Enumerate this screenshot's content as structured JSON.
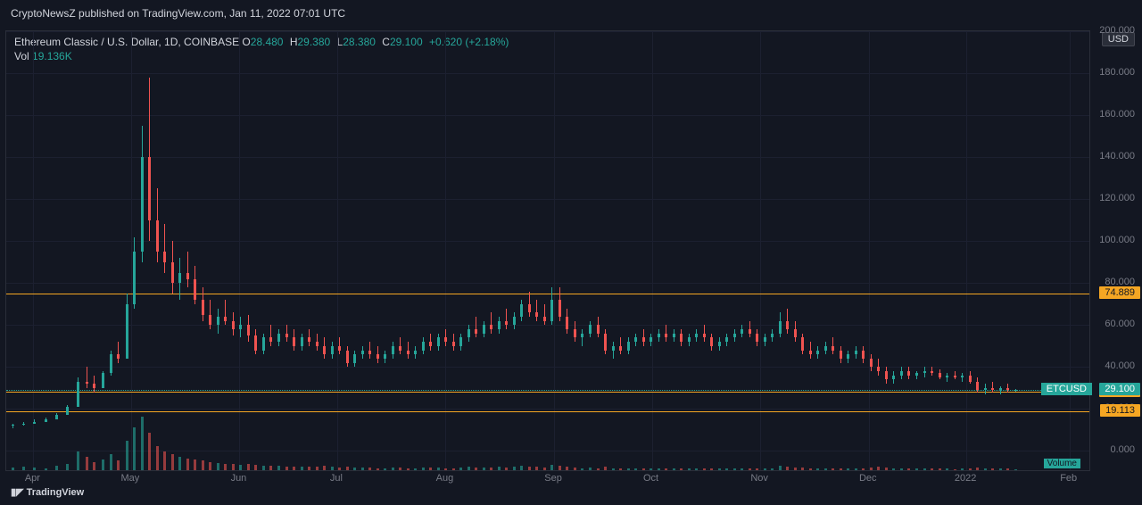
{
  "header": {
    "publisher": "CryptoNewsZ published on TradingView.com, Jan 11, 2022 07:01 UTC"
  },
  "ohlc": {
    "symbol": "Ethereum Classic / U.S. Dollar, 1D, COINBASE",
    "o_label": "O",
    "o": "28.480",
    "h_label": "H",
    "h": "29.380",
    "l_label": "L",
    "l": "28.380",
    "c_label": "C",
    "c": "29.100",
    "chg": "+0.620",
    "chg_pct": "(+2.18%)"
  },
  "volume": {
    "label": "Vol",
    "value": "19.136K"
  },
  "currency_badge": "USD",
  "colors": {
    "bg": "#131722",
    "up": "#26a69a",
    "down": "#ef5350",
    "grid": "#1c2030",
    "hline": "#f5a623",
    "axis_text": "#787b86",
    "text": "#d1d4dc",
    "price_tag_up": "#26a69a",
    "price_tag_line": "#f5a623"
  },
  "chart": {
    "type": "candlestick",
    "ylim": [
      -10,
      200
    ],
    "y_ticks": [
      0,
      20,
      40,
      60,
      80,
      100,
      120,
      140,
      160,
      180,
      200
    ],
    "y_tick_labels": [
      "0.000",
      "20.000",
      "40.000",
      "60.000",
      "80.000",
      "100.000",
      "120.000",
      "140.000",
      "160.000",
      "180.000",
      "200.000"
    ],
    "x_labels": [
      "Apr",
      "May",
      "Jun",
      "Jul",
      "Aug",
      "Sep",
      "Oct",
      "Nov",
      "Dec",
      "2022",
      "Feb"
    ],
    "x_positions_pct": [
      2.5,
      11.5,
      21.5,
      30.5,
      40.5,
      50.5,
      59.5,
      69.5,
      79.5,
      88.5,
      98.0
    ],
    "h_lines": [
      {
        "value": 74.889,
        "label": "74.889",
        "color": "#f5a623"
      },
      {
        "value": 28.436,
        "label": "28.436",
        "color": "#f5a623"
      },
      {
        "value": 19.113,
        "label": "19.113",
        "color": "#f5a623"
      }
    ],
    "current_price": {
      "value": 29.1,
      "label": "29.100",
      "ticker": "ETCUSD",
      "bg": "#26a69a"
    },
    "vol_baseline": 0.02,
    "candles": [
      {
        "x": 0.5,
        "o": 12,
        "h": 13,
        "l": 11,
        "c": 12.5,
        "v": 0.05
      },
      {
        "x": 1.5,
        "o": 12.5,
        "h": 14,
        "l": 12,
        "c": 13,
        "v": 0.06
      },
      {
        "x": 2.5,
        "o": 13,
        "h": 15,
        "l": 13,
        "c": 14,
        "v": 0.05
      },
      {
        "x": 3.5,
        "o": 14,
        "h": 16,
        "l": 14,
        "c": 15,
        "v": 0.04
      },
      {
        "x": 4.5,
        "o": 15,
        "h": 18,
        "l": 15,
        "c": 17,
        "v": 0.08
      },
      {
        "x": 5.5,
        "o": 17,
        "h": 22,
        "l": 17,
        "c": 21,
        "v": 0.12
      },
      {
        "x": 6.5,
        "o": 21,
        "h": 35,
        "l": 21,
        "c": 33,
        "v": 0.35
      },
      {
        "x": 7.3,
        "o": 33,
        "h": 40,
        "l": 30,
        "c": 32,
        "v": 0.25
      },
      {
        "x": 8.0,
        "o": 32,
        "h": 36,
        "l": 28,
        "c": 30,
        "v": 0.15
      },
      {
        "x": 8.8,
        "o": 30,
        "h": 38,
        "l": 30,
        "c": 37,
        "v": 0.2
      },
      {
        "x": 9.5,
        "o": 37,
        "h": 48,
        "l": 36,
        "c": 46,
        "v": 0.3
      },
      {
        "x": 10.2,
        "o": 46,
        "h": 52,
        "l": 42,
        "c": 44,
        "v": 0.18
      },
      {
        "x": 11,
        "o": 44,
        "h": 75,
        "l": 44,
        "c": 70,
        "v": 0.55
      },
      {
        "x": 11.7,
        "o": 70,
        "h": 102,
        "l": 68,
        "c": 95,
        "v": 0.8
      },
      {
        "x": 12.4,
        "o": 95,
        "h": 155,
        "l": 90,
        "c": 140,
        "v": 1.0
      },
      {
        "x": 13.1,
        "o": 140,
        "h": 178,
        "l": 100,
        "c": 110,
        "v": 0.7
      },
      {
        "x": 13.8,
        "o": 110,
        "h": 125,
        "l": 90,
        "c": 95,
        "v": 0.45
      },
      {
        "x": 14.5,
        "o": 95,
        "h": 108,
        "l": 85,
        "c": 90,
        "v": 0.35
      },
      {
        "x": 15.2,
        "o": 90,
        "h": 100,
        "l": 75,
        "c": 80,
        "v": 0.3
      },
      {
        "x": 15.9,
        "o": 80,
        "h": 92,
        "l": 72,
        "c": 85,
        "v": 0.25
      },
      {
        "x": 16.6,
        "o": 85,
        "h": 95,
        "l": 78,
        "c": 82,
        "v": 0.22
      },
      {
        "x": 17.3,
        "o": 82,
        "h": 88,
        "l": 70,
        "c": 72,
        "v": 0.2
      },
      {
        "x": 18.0,
        "o": 72,
        "h": 78,
        "l": 62,
        "c": 65,
        "v": 0.18
      },
      {
        "x": 18.7,
        "o": 65,
        "h": 72,
        "l": 58,
        "c": 60,
        "v": 0.15
      },
      {
        "x": 19.4,
        "o": 60,
        "h": 68,
        "l": 56,
        "c": 64,
        "v": 0.14
      },
      {
        "x": 20.1,
        "o": 64,
        "h": 72,
        "l": 60,
        "c": 62,
        "v": 0.12
      },
      {
        "x": 20.8,
        "o": 62,
        "h": 66,
        "l": 55,
        "c": 58,
        "v": 0.11
      },
      {
        "x": 21.5,
        "o": 58,
        "h": 64,
        "l": 54,
        "c": 60,
        "v": 0.1
      },
      {
        "x": 22.2,
        "o": 60,
        "h": 65,
        "l": 52,
        "c": 55,
        "v": 0.12
      },
      {
        "x": 22.9,
        "o": 55,
        "h": 58,
        "l": 46,
        "c": 48,
        "v": 0.1
      },
      {
        "x": 23.6,
        "o": 48,
        "h": 56,
        "l": 46,
        "c": 54,
        "v": 0.09
      },
      {
        "x": 24.3,
        "o": 54,
        "h": 60,
        "l": 50,
        "c": 52,
        "v": 0.08
      },
      {
        "x": 25.0,
        "o": 52,
        "h": 58,
        "l": 50,
        "c": 56,
        "v": 0.08
      },
      {
        "x": 25.7,
        "o": 56,
        "h": 60,
        "l": 52,
        "c": 54,
        "v": 0.07
      },
      {
        "x": 26.4,
        "o": 54,
        "h": 58,
        "l": 48,
        "c": 50,
        "v": 0.07
      },
      {
        "x": 27.1,
        "o": 50,
        "h": 56,
        "l": 48,
        "c": 54,
        "v": 0.06
      },
      {
        "x": 27.8,
        "o": 54,
        "h": 58,
        "l": 50,
        "c": 52,
        "v": 0.06
      },
      {
        "x": 28.5,
        "o": 52,
        "h": 56,
        "l": 48,
        "c": 50,
        "v": 0.06
      },
      {
        "x": 29.2,
        "o": 50,
        "h": 54,
        "l": 44,
        "c": 46,
        "v": 0.08
      },
      {
        "x": 29.9,
        "o": 46,
        "h": 52,
        "l": 44,
        "c": 50,
        "v": 0.06
      },
      {
        "x": 30.6,
        "o": 50,
        "h": 54,
        "l": 46,
        "c": 48,
        "v": 0.05
      },
      {
        "x": 31.3,
        "o": 48,
        "h": 50,
        "l": 40,
        "c": 42,
        "v": 0.07
      },
      {
        "x": 32.0,
        "o": 42,
        "h": 48,
        "l": 40,
        "c": 46,
        "v": 0.05
      },
      {
        "x": 32.7,
        "o": 46,
        "h": 50,
        "l": 44,
        "c": 48,
        "v": 0.05
      },
      {
        "x": 33.4,
        "o": 48,
        "h": 52,
        "l": 44,
        "c": 46,
        "v": 0.05
      },
      {
        "x": 34.1,
        "o": 46,
        "h": 50,
        "l": 42,
        "c": 44,
        "v": 0.04
      },
      {
        "x": 34.8,
        "o": 44,
        "h": 48,
        "l": 42,
        "c": 46,
        "v": 0.04
      },
      {
        "x": 35.5,
        "o": 46,
        "h": 52,
        "l": 44,
        "c": 50,
        "v": 0.05
      },
      {
        "x": 36.2,
        "o": 50,
        "h": 54,
        "l": 46,
        "c": 48,
        "v": 0.05
      },
      {
        "x": 36.9,
        "o": 48,
        "h": 52,
        "l": 44,
        "c": 46,
        "v": 0.04
      },
      {
        "x": 37.6,
        "o": 46,
        "h": 50,
        "l": 44,
        "c": 48,
        "v": 0.04
      },
      {
        "x": 38.3,
        "o": 48,
        "h": 54,
        "l": 46,
        "c": 52,
        "v": 0.05
      },
      {
        "x": 39.0,
        "o": 52,
        "h": 56,
        "l": 48,
        "c": 50,
        "v": 0.05
      },
      {
        "x": 39.7,
        "o": 50,
        "h": 56,
        "l": 48,
        "c": 54,
        "v": 0.05
      },
      {
        "x": 40.4,
        "o": 54,
        "h": 58,
        "l": 50,
        "c": 52,
        "v": 0.04
      },
      {
        "x": 41.1,
        "o": 52,
        "h": 56,
        "l": 48,
        "c": 50,
        "v": 0.04
      },
      {
        "x": 41.8,
        "o": 50,
        "h": 56,
        "l": 48,
        "c": 54,
        "v": 0.05
      },
      {
        "x": 42.5,
        "o": 54,
        "h": 60,
        "l": 52,
        "c": 58,
        "v": 0.06
      },
      {
        "x": 43.2,
        "o": 58,
        "h": 64,
        "l": 54,
        "c": 56,
        "v": 0.05
      },
      {
        "x": 43.9,
        "o": 56,
        "h": 62,
        "l": 54,
        "c": 60,
        "v": 0.05
      },
      {
        "x": 44.6,
        "o": 60,
        "h": 66,
        "l": 56,
        "c": 58,
        "v": 0.05
      },
      {
        "x": 45.3,
        "o": 58,
        "h": 64,
        "l": 56,
        "c": 62,
        "v": 0.06
      },
      {
        "x": 46.0,
        "o": 62,
        "h": 68,
        "l": 58,
        "c": 60,
        "v": 0.05
      },
      {
        "x": 46.7,
        "o": 60,
        "h": 66,
        "l": 58,
        "c": 64,
        "v": 0.06
      },
      {
        "x": 47.4,
        "o": 64,
        "h": 72,
        "l": 62,
        "c": 70,
        "v": 0.08
      },
      {
        "x": 48.1,
        "o": 70,
        "h": 76,
        "l": 64,
        "c": 66,
        "v": 0.07
      },
      {
        "x": 48.8,
        "o": 66,
        "h": 72,
        "l": 62,
        "c": 64,
        "v": 0.06
      },
      {
        "x": 49.5,
        "o": 64,
        "h": 70,
        "l": 60,
        "c": 62,
        "v": 0.05
      },
      {
        "x": 50.2,
        "o": 62,
        "h": 78,
        "l": 60,
        "c": 72,
        "v": 0.1
      },
      {
        "x": 50.9,
        "o": 72,
        "h": 78,
        "l": 62,
        "c": 64,
        "v": 0.08
      },
      {
        "x": 51.6,
        "o": 64,
        "h": 68,
        "l": 56,
        "c": 58,
        "v": 0.06
      },
      {
        "x": 52.3,
        "o": 58,
        "h": 62,
        "l": 52,
        "c": 54,
        "v": 0.05
      },
      {
        "x": 53.0,
        "o": 54,
        "h": 58,
        "l": 50,
        "c": 56,
        "v": 0.04
      },
      {
        "x": 53.7,
        "o": 56,
        "h": 62,
        "l": 54,
        "c": 60,
        "v": 0.05
      },
      {
        "x": 54.4,
        "o": 60,
        "h": 64,
        "l": 54,
        "c": 56,
        "v": 0.04
      },
      {
        "x": 55.1,
        "o": 56,
        "h": 58,
        "l": 46,
        "c": 48,
        "v": 0.06
      },
      {
        "x": 55.8,
        "o": 48,
        "h": 52,
        "l": 44,
        "c": 50,
        "v": 0.04
      },
      {
        "x": 56.5,
        "o": 50,
        "h": 54,
        "l": 46,
        "c": 48,
        "v": 0.04
      },
      {
        "x": 57.2,
        "o": 48,
        "h": 54,
        "l": 46,
        "c": 52,
        "v": 0.04
      },
      {
        "x": 57.9,
        "o": 52,
        "h": 56,
        "l": 50,
        "c": 54,
        "v": 0.04
      },
      {
        "x": 58.6,
        "o": 54,
        "h": 58,
        "l": 50,
        "c": 52,
        "v": 0.04
      },
      {
        "x": 59.3,
        "o": 52,
        "h": 56,
        "l": 50,
        "c": 54,
        "v": 0.03
      },
      {
        "x": 60.0,
        "o": 54,
        "h": 58,
        "l": 52,
        "c": 56,
        "v": 0.04
      },
      {
        "x": 60.7,
        "o": 56,
        "h": 60,
        "l": 52,
        "c": 54,
        "v": 0.04
      },
      {
        "x": 61.4,
        "o": 54,
        "h": 58,
        "l": 52,
        "c": 56,
        "v": 0.03
      },
      {
        "x": 62.1,
        "o": 56,
        "h": 58,
        "l": 50,
        "c": 52,
        "v": 0.04
      },
      {
        "x": 62.8,
        "o": 52,
        "h": 56,
        "l": 50,
        "c": 54,
        "v": 0.03
      },
      {
        "x": 63.5,
        "o": 54,
        "h": 58,
        "l": 52,
        "c": 56,
        "v": 0.04
      },
      {
        "x": 64.2,
        "o": 56,
        "h": 60,
        "l": 52,
        "c": 54,
        "v": 0.03
      },
      {
        "x": 64.9,
        "o": 54,
        "h": 56,
        "l": 48,
        "c": 50,
        "v": 0.04
      },
      {
        "x": 65.6,
        "o": 50,
        "h": 54,
        "l": 48,
        "c": 52,
        "v": 0.03
      },
      {
        "x": 66.3,
        "o": 52,
        "h": 56,
        "l": 50,
        "c": 54,
        "v": 0.03
      },
      {
        "x": 67.0,
        "o": 54,
        "h": 58,
        "l": 52,
        "c": 56,
        "v": 0.04
      },
      {
        "x": 67.7,
        "o": 56,
        "h": 60,
        "l": 54,
        "c": 58,
        "v": 0.04
      },
      {
        "x": 68.4,
        "o": 58,
        "h": 62,
        "l": 54,
        "c": 56,
        "v": 0.04
      },
      {
        "x": 69.1,
        "o": 56,
        "h": 58,
        "l": 50,
        "c": 52,
        "v": 0.04
      },
      {
        "x": 69.8,
        "o": 52,
        "h": 56,
        "l": 50,
        "c": 54,
        "v": 0.03
      },
      {
        "x": 70.5,
        "o": 54,
        "h": 58,
        "l": 52,
        "c": 56,
        "v": 0.03
      },
      {
        "x": 71.2,
        "o": 56,
        "h": 66,
        "l": 54,
        "c": 62,
        "v": 0.08
      },
      {
        "x": 71.9,
        "o": 62,
        "h": 68,
        "l": 56,
        "c": 58,
        "v": 0.06
      },
      {
        "x": 72.6,
        "o": 58,
        "h": 62,
        "l": 52,
        "c": 54,
        "v": 0.05
      },
      {
        "x": 73.3,
        "o": 54,
        "h": 56,
        "l": 46,
        "c": 48,
        "v": 0.05
      },
      {
        "x": 74.0,
        "o": 48,
        "h": 52,
        "l": 44,
        "c": 46,
        "v": 0.04
      },
      {
        "x": 74.7,
        "o": 46,
        "h": 50,
        "l": 44,
        "c": 48,
        "v": 0.03
      },
      {
        "x": 75.4,
        "o": 48,
        "h": 52,
        "l": 46,
        "c": 50,
        "v": 0.03
      },
      {
        "x": 76.1,
        "o": 50,
        "h": 54,
        "l": 46,
        "c": 48,
        "v": 0.04
      },
      {
        "x": 76.8,
        "o": 48,
        "h": 50,
        "l": 42,
        "c": 44,
        "v": 0.04
      },
      {
        "x": 77.5,
        "o": 44,
        "h": 48,
        "l": 42,
        "c": 46,
        "v": 0.03
      },
      {
        "x": 78.2,
        "o": 46,
        "h": 50,
        "l": 44,
        "c": 48,
        "v": 0.03
      },
      {
        "x": 78.9,
        "o": 48,
        "h": 50,
        "l": 42,
        "c": 44,
        "v": 0.04
      },
      {
        "x": 79.6,
        "o": 44,
        "h": 46,
        "l": 38,
        "c": 40,
        "v": 0.05
      },
      {
        "x": 80.3,
        "o": 40,
        "h": 44,
        "l": 36,
        "c": 38,
        "v": 0.06
      },
      {
        "x": 81.0,
        "o": 38,
        "h": 40,
        "l": 32,
        "c": 34,
        "v": 0.05
      },
      {
        "x": 81.7,
        "o": 34,
        "h": 38,
        "l": 32,
        "c": 36,
        "v": 0.04
      },
      {
        "x": 82.4,
        "o": 36,
        "h": 40,
        "l": 34,
        "c": 38,
        "v": 0.03
      },
      {
        "x": 83.1,
        "o": 38,
        "h": 40,
        "l": 34,
        "c": 36,
        "v": 0.03
      },
      {
        "x": 83.8,
        "o": 36,
        "h": 38,
        "l": 34,
        "c": 37,
        "v": 0.03
      },
      {
        "x": 84.5,
        "o": 37,
        "h": 40,
        "l": 35,
        "c": 38,
        "v": 0.03
      },
      {
        "x": 85.2,
        "o": 38,
        "h": 40,
        "l": 36,
        "c": 37,
        "v": 0.03
      },
      {
        "x": 85.9,
        "o": 37,
        "h": 39,
        "l": 34,
        "c": 35,
        "v": 0.03
      },
      {
        "x": 86.6,
        "o": 35,
        "h": 37,
        "l": 33,
        "c": 36,
        "v": 0.03
      },
      {
        "x": 87.3,
        "o": 36,
        "h": 38,
        "l": 34,
        "c": 35,
        "v": 0.02
      },
      {
        "x": 88.0,
        "o": 35,
        "h": 37,
        "l": 33,
        "c": 36,
        "v": 0.03
      },
      {
        "x": 88.7,
        "o": 36,
        "h": 38,
        "l": 32,
        "c": 33,
        "v": 0.04
      },
      {
        "x": 89.4,
        "o": 33,
        "h": 35,
        "l": 28,
        "c": 29,
        "v": 0.05
      },
      {
        "x": 90.1,
        "o": 29,
        "h": 32,
        "l": 27,
        "c": 30,
        "v": 0.04
      },
      {
        "x": 90.8,
        "o": 30,
        "h": 33,
        "l": 28,
        "c": 29,
        "v": 0.03
      },
      {
        "x": 91.5,
        "o": 29,
        "h": 31,
        "l": 27,
        "c": 30,
        "v": 0.03
      },
      {
        "x": 92.2,
        "o": 30,
        "h": 32,
        "l": 28,
        "c": 29,
        "v": 0.03
      },
      {
        "x": 92.9,
        "o": 28.48,
        "h": 29.38,
        "l": 28.38,
        "c": 29.1,
        "v": 0.02
      }
    ]
  },
  "volume_badge": "Volume",
  "tv_logo": "TradingView"
}
